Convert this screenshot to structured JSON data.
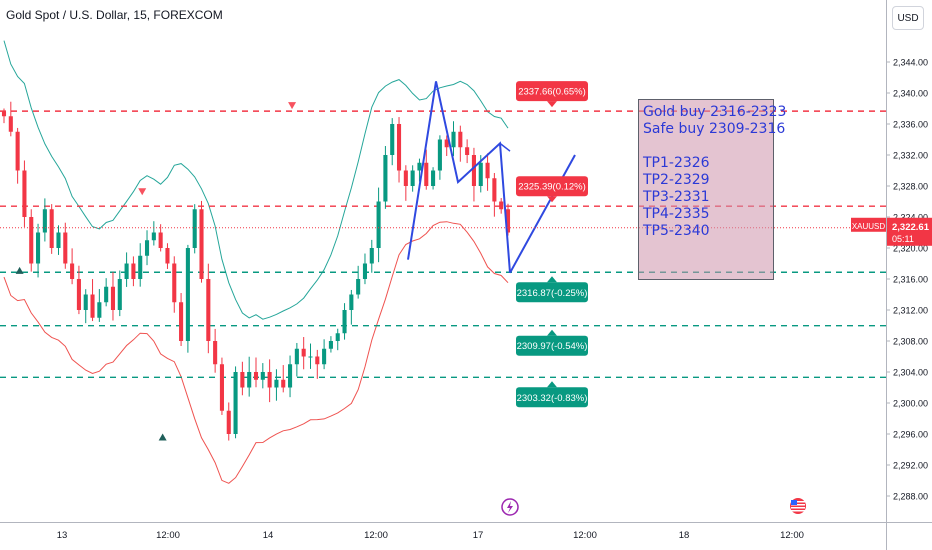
{
  "header": {
    "symbol_title": "Gold Spot / U.S. Dollar, 15, FOREXCOM",
    "currency_button": "USD"
  },
  "note": {
    "lines_top": [
      "Gold buy 2316-2323",
      "Safe buy 2309-2316"
    ],
    "lines_bottom": [
      "TP1-2326",
      "TP2-2329",
      "TP3-2331",
      "TP4-2335",
      "TP5-2340"
    ]
  },
  "chart_data": {
    "type": "candlestick",
    "symbol": "XAUUSD",
    "interval": "15",
    "y_axis": {
      "ylim": [
        2286,
        2347
      ],
      "tick_labels": [
        "2,288.00",
        "2,292.00",
        "2,296.00",
        "2,300.00",
        "2,304.00",
        "2,308.00",
        "2,312.00",
        "2,316.00",
        "2,320.00",
        "2,324.00",
        "2,328.00",
        "2,332.00",
        "2,336.00",
        "2,340.00",
        "2,344.00"
      ],
      "tick_values": [
        2288,
        2292,
        2296,
        2300,
        2304,
        2308,
        2312,
        2316,
        2320,
        2324,
        2328,
        2332,
        2336,
        2340,
        2344
      ]
    },
    "x_axis": {
      "tick_labels": [
        "13",
        "12:00",
        "14",
        "12:00",
        "17",
        "12:00",
        "18",
        "12:00"
      ]
    },
    "last_price": {
      "label": "XAUUSD",
      "value": "2,322.61",
      "countdown": "05:11",
      "price": 2322.61,
      "color": "#f23645"
    },
    "levels": [
      {
        "price": 2337.66,
        "label": "2337.66(0.65%)",
        "color": "#f23645"
      },
      {
        "price": 2325.39,
        "label": "2325.39(0.12%)",
        "color": "#f23645"
      },
      {
        "price": 2316.87,
        "label": "2316.87(-0.25%)",
        "color": "#089981"
      },
      {
        "price": 2309.97,
        "label": "2309.97(-0.54%)",
        "color": "#089981"
      },
      {
        "price": 2303.32,
        "label": "2303.32(-0.83%)",
        "color": "#089981"
      }
    ],
    "colors": {
      "up": "#089981",
      "down": "#f23645",
      "band_upper": "#26a69a",
      "band_lower": "#ef5350",
      "drawing": "#2f49e0"
    },
    "close_path": [
      2337,
      2335,
      2330,
      2324,
      2318,
      2322,
      2325,
      2320,
      2322,
      2318,
      2316,
      2312,
      2314,
      2311,
      2313,
      2315,
      2312,
      2316,
      2318,
      2316,
      2319,
      2321,
      2322,
      2320,
      2318,
      2313,
      2308,
      2320,
      2325,
      2316,
      2308,
      2305,
      2299,
      2296,
      2304,
      2302,
      2304,
      2303,
      2304,
      2302,
      2303,
      2302,
      2305,
      2307,
      2306,
      2306,
      2305,
      2307,
      2308,
      2309,
      2312,
      2314,
      2316,
      2318,
      2320,
      2326,
      2332,
      2336,
      2330,
      2328,
      2330,
      2331,
      2328,
      2330,
      2334,
      2333,
      2335,
      2333,
      2332,
      2328,
      2331,
      2329,
      2326,
      2325,
      2322
    ],
    "markers": [
      {
        "kind": "up",
        "price": 2317.3,
        "x_index": 2
      },
      {
        "kind": "down",
        "price": 2327.2,
        "x_index": 20
      },
      {
        "kind": "up",
        "price": 2295.8,
        "x_index": 23
      },
      {
        "kind": "down",
        "price": 2338.3,
        "x_index": 42
      }
    ]
  }
}
